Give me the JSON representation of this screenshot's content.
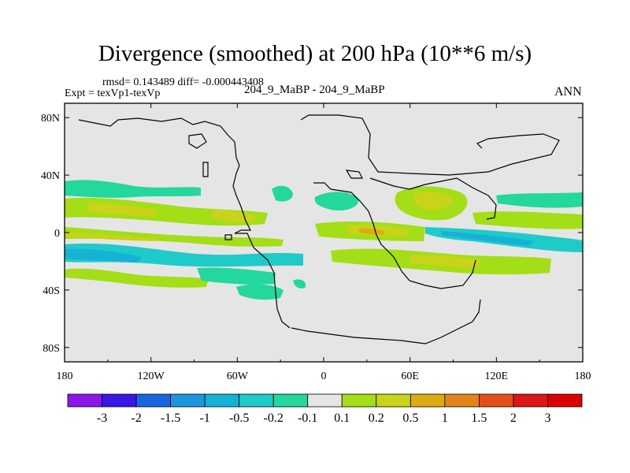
{
  "chart_data": {
    "type": "contour-map",
    "title": "Divergence (smoothed) at 200 hPa (10**6 m/s)",
    "stats": "rmsd= 0.143489 diff= -0.000443408",
    "experiment": "Expt = texVp1-texVp",
    "case": "204_9_MaBP - 204_9_MaBP",
    "season": "ANN",
    "x_ticks": [
      "180",
      "120W",
      "60W",
      "0",
      "60E",
      "120E",
      "180"
    ],
    "x_values": [
      -180,
      -120,
      -60,
      0,
      60,
      120,
      180
    ],
    "y_ticks": [
      "80N",
      "40N",
      "0",
      "40S",
      "80S"
    ],
    "y_values": [
      80,
      40,
      0,
      -40,
      -80
    ],
    "xlim": [
      -180,
      180
    ],
    "ylim": [
      -90,
      90
    ],
    "levels": [
      "-3",
      "-2",
      "-1.5",
      "-1",
      "-0.5",
      "-0.2",
      "-0.1",
      "0.1",
      "0.2",
      "0.5",
      "1",
      "1.5",
      "2",
      "3"
    ],
    "colors": [
      "#8a17e6",
      "#3a17e6",
      "#1766e0",
      "#1c95df",
      "#16b2d6",
      "#1fcbc8",
      "#23d79d",
      "#e5e5e5",
      "#a3de16",
      "#c8d31a",
      "#dcac12",
      "#e4851b",
      "#e25019",
      "#dd1515",
      "#d90000"
    ],
    "background_color": "#e5e5e5"
  }
}
